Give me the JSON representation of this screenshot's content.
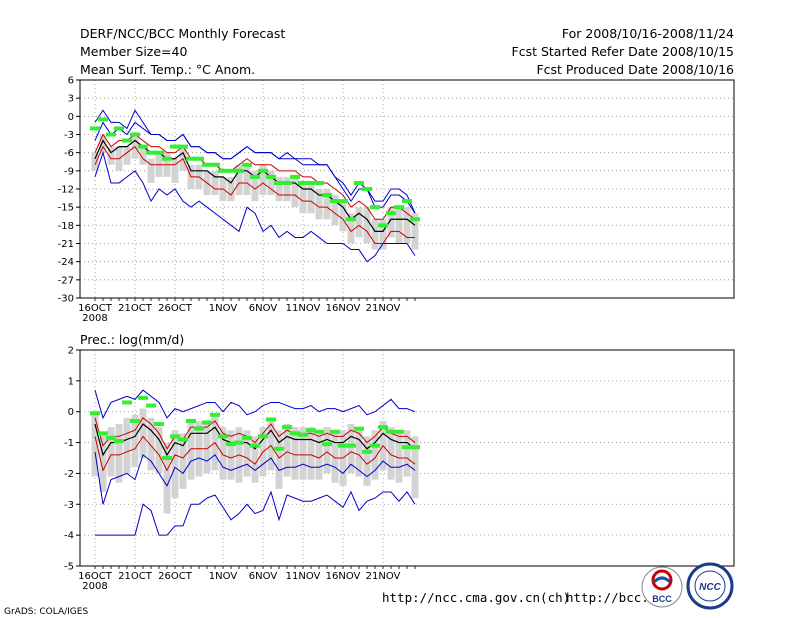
{
  "header": {
    "title": "DERF/NCC/BCC Monthly Forecast",
    "member_size": "Member Size=40",
    "variable": "Mean Surf. Temp.: °C Anom.",
    "period": "For 2008/10/16-2008/11/24",
    "started": "Fcst Started Refer Date 2008/10/15",
    "produced": "Fcst Produced Date 2008/10/16"
  },
  "footer": {
    "grads": "GrADS: COLA/IGES",
    "url1": "http://ncc.cma.gov.cn(ch)",
    "url2": "http://bcc.c",
    "logo_bcc": "BCC",
    "logo_ncc": "NCC"
  },
  "colors": {
    "ens_mean": "#000000",
    "spread": "#cc0000",
    "range": "#0000cc",
    "box": "#d3d3d3",
    "climo": "#33ee33",
    "grid": "#8c8c8c"
  },
  "chart_data": [
    {
      "type": "line",
      "title": "Mean Surf. Temp.: °C Anom.",
      "ylim": [
        -30,
        6
      ],
      "yticks": [
        "6",
        "3",
        "0",
        "-3",
        "-6",
        "-9",
        "-12",
        "-15",
        "-18",
        "-21",
        "-24",
        "-27",
        "-30"
      ],
      "ytick_values": [
        6,
        3,
        0,
        -3,
        -6,
        -9,
        -12,
        -15,
        -18,
        -21,
        -24,
        -27,
        -30
      ],
      "xticks": [
        "16OCT",
        "21OCT",
        "26OCT",
        "1NOV",
        "6NOV",
        "11NOV",
        "16NOV",
        "21NOV"
      ],
      "xtick_day_index": [
        0,
        5,
        10,
        16,
        21,
        26,
        31,
        36
      ],
      "xsub": "2008",
      "grid": true,
      "series": [
        {
          "name": "max",
          "values": [
            -10,
            -6,
            -11,
            -11,
            -10,
            -9,
            -11,
            -14,
            -12,
            -13,
            -12,
            -14,
            -15,
            -14,
            -15,
            -16,
            -17,
            -18,
            -19,
            -15,
            -16,
            -19,
            -18,
            -20,
            -19,
            -20,
            -20,
            -19,
            -20,
            -21,
            -21,
            -21,
            -22,
            -22,
            -24,
            -23,
            -21,
            -21,
            -21,
            -21,
            -23
          ]
        },
        {
          "name": "upper",
          "values": [
            -4,
            -1,
            -3,
            -2,
            -3,
            -1,
            -2,
            -3,
            -3,
            -4,
            -4,
            -3,
            -5,
            -5,
            -6,
            -6,
            -7,
            -7,
            -6,
            -5,
            -6,
            -6,
            -6,
            -7,
            -6,
            -7,
            -7,
            -7,
            -8,
            -8,
            -10,
            -11,
            -13,
            -11,
            -12,
            -15,
            -15,
            -13,
            -13,
            -14,
            -16
          ]
        },
        {
          "name": "upper_mid",
          "values": [
            -6,
            -3,
            -5,
            -4,
            -4,
            -3,
            -4,
            -5,
            -5,
            -6,
            -6,
            -5,
            -7,
            -7,
            -8,
            -8,
            -9,
            -9,
            -8,
            -7,
            -8,
            -8,
            -8,
            -9,
            -9,
            -9,
            -10,
            -10,
            -11,
            -11,
            -12,
            -13,
            -15,
            -14,
            -15,
            -17,
            -17,
            -15,
            -15,
            -16,
            -17
          ]
        },
        {
          "name": "ens_mean",
          "values": [
            -7,
            -4,
            -6,
            -5,
            -5,
            -4,
            -5,
            -6,
            -6,
            -7,
            -7,
            -6,
            -9,
            -9,
            -9,
            -10,
            -10,
            -11,
            -9,
            -9,
            -10,
            -9,
            -10,
            -11,
            -11,
            -11,
            -12,
            -12,
            -13,
            -13,
            -14,
            -15,
            -17,
            -16,
            -17,
            -19,
            -19,
            -17,
            -17,
            -17,
            -18
          ]
        },
        {
          "name": "lower_mid",
          "values": [
            -8,
            -5,
            -7,
            -7,
            -6,
            -5,
            -7,
            -8,
            -8,
            -8,
            -8,
            -7,
            -10,
            -10,
            -11,
            -12,
            -12,
            -13,
            -11,
            -11,
            -12,
            -11,
            -12,
            -13,
            -13,
            -13,
            -14,
            -14,
            -15,
            -15,
            -16,
            -17,
            -19,
            -18,
            -19,
            -21,
            -21,
            -19,
            -19,
            -20,
            -20
          ]
        },
        {
          "name": "lower",
          "values": [
            -1,
            1,
            -1,
            -1,
            -2,
            1,
            -1,
            -3,
            -3,
            -4,
            -4,
            -3,
            -5,
            -5,
            -6,
            -6,
            -7,
            -7,
            -6,
            -5,
            -6,
            -6,
            -6,
            -7,
            -7,
            -7,
            -8,
            -8,
            -8,
            -8,
            -10,
            -12,
            -14,
            -12,
            -12,
            -14,
            -14,
            -12,
            -12,
            -13,
            -16
          ]
        }
      ],
      "box_low": [
        -6,
        -3,
        -5,
        -5,
        -5,
        -3,
        -5,
        -7,
        -6,
        -6,
        -7,
        -5,
        -8,
        -8,
        -9,
        -9,
        -10,
        -10,
        -8,
        -8,
        -9,
        -8,
        -9,
        -10,
        -10,
        -10,
        -11,
        -11,
        -12,
        -12,
        -13,
        -14,
        -16,
        -15,
        -15,
        -17,
        -17,
        -15,
        -15,
        -15,
        -16
      ],
      "box_high": [
        -9,
        -6,
        -8,
        -9,
        -8,
        -7,
        -8,
        -11,
        -10,
        -10,
        -11,
        -9,
        -12,
        -12,
        -13,
        -13,
        -14,
        -14,
        -13,
        -13,
        -14,
        -13,
        -13,
        -14,
        -14,
        -15,
        -16,
        -16,
        -17,
        -17,
        -18,
        -19,
        -21,
        -20,
        -21,
        -22,
        -22,
        -20,
        -21,
        -21,
        -22
      ],
      "climo": [
        -2,
        -0.5,
        -3,
        -2,
        -4,
        -3,
        -5,
        -6,
        -6,
        -7,
        -5,
        -5,
        -7,
        -7,
        -8,
        -8,
        -9,
        -9,
        -9,
        -8,
        -10,
        -9,
        -10,
        -11,
        -11,
        -10,
        -11,
        -11,
        -11,
        -13,
        -14,
        -14,
        -17,
        -11,
        -12,
        -15,
        -18,
        -16,
        -15,
        -14,
        -17
      ]
    },
    {
      "type": "line",
      "title": "Prec.: log(mm/d)",
      "ylim": [
        -5,
        2
      ],
      "yticks": [
        "2",
        "1",
        "0",
        "-1",
        "-2",
        "-3",
        "-4",
        "-5"
      ],
      "ytick_values": [
        2,
        1,
        0,
        -1,
        -2,
        -3,
        -4,
        -5
      ],
      "xticks": [
        "16OCT",
        "21OCT",
        "26OCT",
        "1NOV",
        "6NOV",
        "11NOV",
        "16NOV",
        "21NOV"
      ],
      "xtick_day_index": [
        0,
        5,
        10,
        16,
        21,
        26,
        31,
        36
      ],
      "xsub": "2008",
      "grid": true,
      "series": [
        {
          "name": "max",
          "values": [
            0.7,
            -0.2,
            0.3,
            0.4,
            0.5,
            0.4,
            0.7,
            0.5,
            0.3,
            -0.2,
            0.1,
            0.0,
            0.1,
            0.2,
            0.3,
            0.3,
            0.0,
            0.3,
            0.2,
            -0.1,
            0.0,
            0.2,
            0.3,
            0.3,
            0.2,
            0.1,
            0.1,
            0.2,
            0.0,
            0.1,
            0.1,
            0.0,
            0.1,
            0.2,
            -0.1,
            0.0,
            0.2,
            0.4,
            0.1,
            0.1,
            0.0
          ]
        },
        {
          "name": "upper_mid",
          "values": [
            -0.2,
            -1.1,
            -0.8,
            -0.8,
            -0.7,
            -0.6,
            -0.2,
            -0.4,
            -0.7,
            -1.2,
            -0.8,
            -0.9,
            -0.5,
            -0.5,
            -0.5,
            -0.3,
            -0.7,
            -0.8,
            -0.7,
            -0.8,
            -1.0,
            -0.7,
            -0.4,
            -0.8,
            -0.6,
            -0.7,
            -0.7,
            -0.7,
            -0.8,
            -0.7,
            -0.8,
            -0.8,
            -0.6,
            -0.7,
            -1.0,
            -0.8,
            -0.5,
            -0.7,
            -0.8,
            -0.8,
            -1.0
          ]
        },
        {
          "name": "ens_mean",
          "values": [
            -0.4,
            -1.4,
            -1.0,
            -1.0,
            -0.9,
            -0.8,
            -0.4,
            -0.6,
            -0.9,
            -1.4,
            -1.0,
            -1.1,
            -0.7,
            -0.7,
            -0.7,
            -0.5,
            -0.9,
            -1.0,
            -1.0,
            -1.0,
            -1.2,
            -0.9,
            -0.6,
            -1.0,
            -0.8,
            -0.9,
            -0.9,
            -0.9,
            -1.0,
            -0.9,
            -1.0,
            -1.0,
            -0.8,
            -0.9,
            -1.2,
            -1.0,
            -0.7,
            -0.9,
            -1.0,
            -1.0,
            -1.2
          ]
        },
        {
          "name": "lower_mid",
          "values": [
            -0.8,
            -1.9,
            -1.4,
            -1.4,
            -1.3,
            -1.2,
            -0.8,
            -1.1,
            -1.4,
            -1.9,
            -1.4,
            -1.5,
            -1.2,
            -1.2,
            -1.2,
            -1.0,
            -1.4,
            -1.5,
            -1.4,
            -1.5,
            -1.7,
            -1.3,
            -1.1,
            -1.5,
            -1.3,
            -1.4,
            -1.4,
            -1.4,
            -1.5,
            -1.3,
            -1.5,
            -1.5,
            -1.3,
            -1.4,
            -1.7,
            -1.5,
            -1.1,
            -1.4,
            -1.5,
            -1.5,
            -1.7
          ]
        },
        {
          "name": "lower",
          "values": [
            -1.3,
            -3.0,
            -2.2,
            -2.1,
            -2.0,
            -2.2,
            -1.4,
            -1.6,
            -2.0,
            -2.4,
            -1.8,
            -2.0,
            -1.6,
            -1.5,
            -1.6,
            -1.4,
            -1.8,
            -1.9,
            -1.8,
            -1.7,
            -1.9,
            -1.7,
            -1.5,
            -1.9,
            -1.8,
            -1.8,
            -1.7,
            -1.8,
            -1.8,
            -1.7,
            -1.8,
            -2.0,
            -1.7,
            -1.9,
            -2.1,
            -1.9,
            -1.6,
            -1.8,
            -1.8,
            -1.7,
            -1.9
          ]
        },
        {
          "name": "min",
          "values": [
            -4.0,
            -4.0,
            -4.0,
            -4.0,
            -4.0,
            -4.0,
            -3.0,
            -3.2,
            -4.0,
            -4.0,
            -3.7,
            -3.7,
            -3.0,
            -3.0,
            -2.8,
            -2.7,
            -3.1,
            -3.5,
            -3.3,
            -3.0,
            -3.3,
            -3.2,
            -2.6,
            -3.5,
            -2.7,
            -2.8,
            -2.9,
            -2.9,
            -2.8,
            -2.7,
            -2.9,
            -3.1,
            -2.6,
            -3.2,
            -2.9,
            -2.8,
            -2.6,
            -2.6,
            -2.9,
            -2.6,
            -3.0
          ]
        }
      ],
      "box_low": [
        0.0,
        -0.7,
        -0.5,
        -0.4,
        -0.2,
        -0.1,
        0.1,
        -0.2,
        -0.5,
        -1.0,
        -0.6,
        -0.7,
        -0.3,
        -0.3,
        -0.3,
        -0.1,
        -0.5,
        -0.6,
        -0.5,
        -0.6,
        -0.8,
        -0.5,
        -0.2,
        -0.6,
        -0.4,
        -0.5,
        -0.5,
        -0.5,
        -0.6,
        -0.5,
        -0.6,
        -0.6,
        -0.4,
        -0.5,
        -0.8,
        -0.6,
        -0.3,
        -0.5,
        -0.6,
        -0.6,
        -0.8
      ],
      "box_high": [
        -2.1,
        -2.6,
        -2.1,
        -2.3,
        -2.0,
        -1.8,
        -1.5,
        -1.9,
        -2.0,
        -3.3,
        -2.8,
        -2.5,
        -2.2,
        -2.1,
        -2.0,
        -1.9,
        -2.2,
        -2.2,
        -2.3,
        -2.1,
        -2.3,
        -2.1,
        -1.9,
        -2.5,
        -2.1,
        -2.2,
        -2.2,
        -2.2,
        -2.2,
        -2.0,
        -2.3,
        -2.4,
        -2.0,
        -2.1,
        -2.4,
        -2.2,
        -1.9,
        -2.2,
        -2.3,
        -2.1,
        -2.8
      ],
      "climo": [
        -0.05,
        -0.7,
        -0.85,
        -0.95,
        0.3,
        -0.3,
        0.45,
        0.2,
        -0.4,
        -1.5,
        -0.8,
        -0.9,
        -0.3,
        -0.55,
        -0.35,
        -0.1,
        -0.8,
        -1.05,
        -1.0,
        -0.85,
        -1.1,
        -0.8,
        -0.25,
        -1.2,
        -0.5,
        -0.7,
        -0.75,
        -0.6,
        -0.65,
        -1.05,
        -0.65,
        -1.1,
        -1.1,
        -0.55,
        -1.3,
        -1.1,
        -0.5,
        -0.65,
        -0.65,
        -1.15,
        -1.15
      ]
    }
  ]
}
